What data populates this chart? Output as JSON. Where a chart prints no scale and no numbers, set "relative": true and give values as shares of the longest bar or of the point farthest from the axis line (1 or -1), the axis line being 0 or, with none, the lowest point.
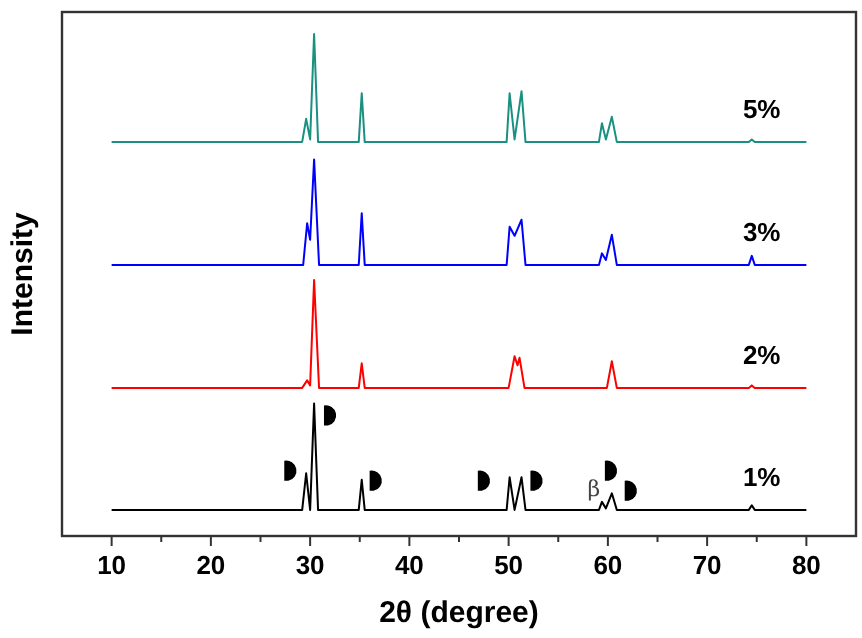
{
  "chart_data": {
    "type": "line",
    "relative": true,
    "xlabel": "2θ (degree)",
    "ylabel": "Intensity",
    "xlim": [
      5,
      85
    ],
    "xticks": [
      10,
      {
        "value": 15,
        "label": null
      },
      20,
      {
        "value": 25,
        "label": null
      },
      30,
      {
        "value": 35,
        "label": null
      },
      40,
      {
        "value": 45,
        "label": null
      },
      50,
      {
        "value": 55,
        "label": null
      },
      60,
      {
        "value": 65,
        "label": null
      },
      70,
      {
        "value": 75,
        "label": null
      },
      80
    ],
    "grid": false,
    "line_style": "solid",
    "marker": "none",
    "annotations": [
      {
        "text": "β",
        "x": 59.4,
        "y": 0.068
      }
    ],
    "series": [
      {
        "name": "1%",
        "color": "#000000",
        "x": [
          10,
          29.2,
          29.6,
          30.0,
          30.4,
          30.8,
          34.9,
          35.2,
          35.5,
          49.8,
          50.1,
          50.6,
          51.3,
          51.7,
          59.1,
          59.4,
          59.8,
          60.4,
          60.9,
          74.2,
          74.5,
          74.8,
          80
        ],
        "values": [
          0.052,
          0.052,
          0.125,
          0.052,
          0.264,
          0.052,
          0.052,
          0.112,
          0.052,
          0.052,
          0.117,
          0.052,
          0.117,
          0.052,
          0.052,
          0.068,
          0.055,
          0.085,
          0.052,
          0.052,
          0.061,
          0.052,
          0.052
        ]
      },
      {
        "name": "2%",
        "color": "#ff0000",
        "x": [
          10,
          29.2,
          29.7,
          30.0,
          30.4,
          30.9,
          34.9,
          35.2,
          35.5,
          50.0,
          50.6,
          50.9,
          51.1,
          51.6,
          59.9,
          60.4,
          60.9,
          74.2,
          74.5,
          74.8,
          80
        ],
        "values": [
          0.295,
          0.295,
          0.31,
          0.3,
          0.51,
          0.295,
          0.295,
          0.344,
          0.295,
          0.295,
          0.358,
          0.34,
          0.355,
          0.295,
          0.295,
          0.348,
          0.295,
          0.295,
          0.3,
          0.295,
          0.295
        ]
      },
      {
        "name": "3%",
        "color": "#0000ff",
        "x": [
          10,
          29.3,
          29.7,
          30.0,
          30.4,
          30.9,
          34.9,
          35.2,
          35.5,
          49.8,
          50.1,
          50.6,
          51.3,
          51.7,
          59.1,
          59.4,
          59.8,
          60.4,
          60.9,
          74.2,
          74.5,
          74.8,
          80
        ],
        "values": [
          0.54,
          0.54,
          0.623,
          0.59,
          0.75,
          0.54,
          0.54,
          0.643,
          0.54,
          0.54,
          0.616,
          0.598,
          0.63,
          0.54,
          0.54,
          0.563,
          0.55,
          0.6,
          0.54,
          0.54,
          0.558,
          0.54,
          0.54
        ]
      },
      {
        "name": "5%",
        "color": "#1a9080",
        "x": [
          10,
          29.2,
          29.6,
          30.0,
          30.4,
          30.8,
          34.9,
          35.2,
          35.5,
          49.8,
          50.1,
          50.6,
          51.3,
          51.7,
          59.1,
          59.4,
          59.8,
          60.4,
          60.9,
          74.2,
          74.5,
          74.8,
          80
        ],
        "values": [
          0.785,
          0.785,
          0.831,
          0.79,
          1.0,
          0.785,
          0.785,
          0.882,
          0.785,
          0.785,
          0.882,
          0.79,
          0.886,
          0.785,
          0.785,
          0.822,
          0.79,
          0.835,
          0.785,
          0.785,
          0.79,
          0.785,
          0.785
        ]
      }
    ]
  }
}
